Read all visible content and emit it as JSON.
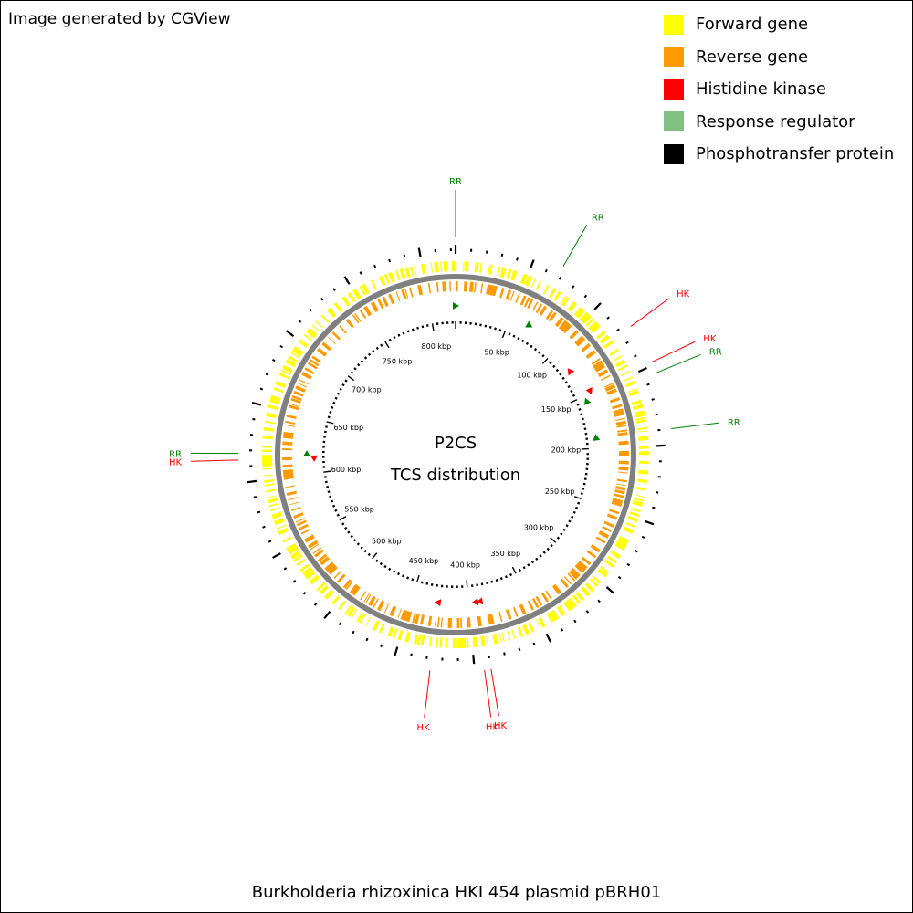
{
  "credit": "Image generated by CGView",
  "legend": [
    {
      "label": "Forward gene",
      "color": "#ffff00"
    },
    {
      "label": "Reverse gene",
      "color": "#ff9900"
    },
    {
      "label": "Histidine kinase",
      "color": "#ff0000"
    },
    {
      "label": "Response regulator",
      "color": "#80c080"
    },
    {
      "label": "Phosphotransfer protein",
      "color": "#000000"
    }
  ],
  "center": {
    "line1": "P2CS",
    "line2": "TCS distribution"
  },
  "footer": "Burkholderia rhizoxinica HKI 454 plasmid pBRH01",
  "map": {
    "sequence_length_kbp": 823,
    "ruler_labels": [
      "50 kbp",
      "100 kbp",
      "150 kbp",
      "200 kbp",
      "250 kbp",
      "300 kbp",
      "350 kbp",
      "400 kbp",
      "450 kbp",
      "500 kbp",
      "550 kbp",
      "600 kbp",
      "650 kbp",
      "700 kbp",
      "750 kbp",
      "800 kbp"
    ],
    "colors": {
      "forward": "#ffff00",
      "reverse": "#ff9900",
      "hk": "#ff0000",
      "rr": "#008000",
      "backbone": "#808080"
    },
    "features": [
      {
        "label": "RR",
        "type": "rr",
        "position_kbp": 0,
        "strand": "+"
      },
      {
        "label": "RR",
        "type": "rr",
        "position_kbp": 68,
        "strand": "+"
      },
      {
        "label": "HK",
        "type": "hk",
        "position_kbp": 123,
        "strand": "-"
      },
      {
        "label": "HK",
        "type": "hk",
        "position_kbp": 148,
        "strand": "+"
      },
      {
        "label": "RR",
        "type": "rr",
        "position_kbp": 155,
        "strand": "-"
      },
      {
        "label": "RR",
        "type": "rr",
        "position_kbp": 190,
        "strand": "-"
      },
      {
        "label": "HK",
        "type": "hk",
        "position_kbp": 390,
        "strand": "+"
      },
      {
        "label": "HK",
        "type": "hk",
        "position_kbp": 394,
        "strand": "+"
      },
      {
        "label": "HK",
        "type": "hk",
        "position_kbp": 427,
        "strand": "+"
      },
      {
        "label": "HK",
        "type": "hk",
        "position_kbp": 614,
        "strand": "-"
      },
      {
        "label": "RR",
        "type": "rr",
        "position_kbp": 618,
        "strand": "+"
      }
    ]
  }
}
